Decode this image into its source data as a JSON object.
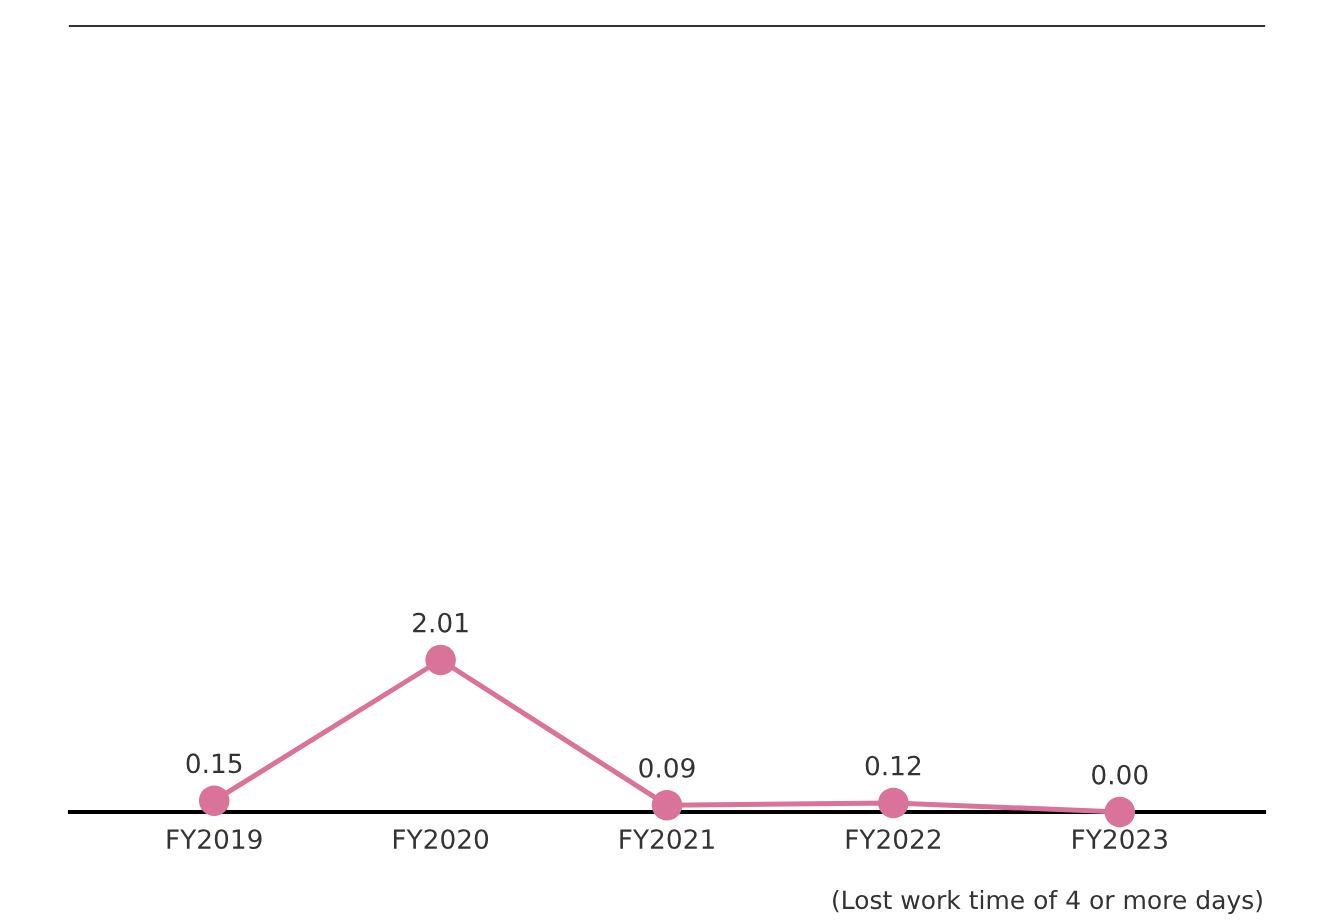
{
  "chart_data": {
    "type": "line",
    "categories": [
      "FY2019",
      "FY2020",
      "FY2021",
      "FY2022",
      "FY2023"
    ],
    "series": [
      {
        "color": "#d9739a",
        "values": [
          0.15,
          2.01,
          0.09,
          0.12,
          0.0
        ],
        "value_labels": [
          "0.15",
          "2.01",
          "0.09",
          "0.12",
          "0.00"
        ]
      }
    ],
    "marker": "circle",
    "line_style": "solid",
    "tick_labels": "x",
    "annotations": [
      "(Lost work time of 4 or more days)"
    ]
  }
}
